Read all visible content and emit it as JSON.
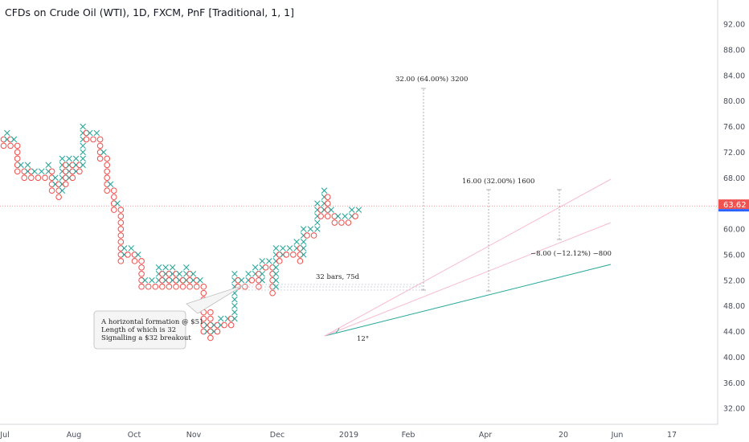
{
  "title": "CFDs on Crude Oil (WTI), 1D, FXCM, PnF [Traditional, 1, 1]",
  "current_price": "63.62",
  "colors": {
    "x_mark": "#26a69a",
    "o_mark": "#ef5350",
    "price_tag": "#ef5350",
    "price_tag_stripe": "#2962ff",
    "trend_green": "#26a69a",
    "trend_pink": "#f48fb1",
    "axis_text": "#4a4f5c"
  },
  "chart_data": {
    "type": "pnf",
    "box_size": 1,
    "reversal": 1,
    "x_axis": {
      "tick_labels": [
        "Jul",
        "Aug",
        "Oct",
        "Nov",
        "Dec",
        "2019",
        "Feb",
        "Apr",
        "20",
        "Jun",
        "17"
      ]
    },
    "y_axis": {
      "range": [
        29,
        95
      ],
      "tick_values": [
        32,
        36,
        40,
        44,
        48,
        52,
        56,
        60,
        64,
        68,
        72,
        76,
        80,
        84,
        88,
        92
      ],
      "tick_labels": [
        "32.00",
        "36.00",
        "40.00",
        "44.00",
        "48.00",
        "52.00",
        "56.00",
        "60.00",
        "64.00",
        "68.00",
        "72.00",
        "76.00",
        "80.00",
        "84.00",
        "88.00",
        "92.00"
      ]
    },
    "columns": [
      {
        "type": "O",
        "from": 74,
        "to": 73
      },
      {
        "type": "X",
        "from": 74,
        "to": 75
      },
      {
        "type": "O",
        "from": 74,
        "to": 73
      },
      {
        "type": "X",
        "from": 74,
        "to": 74
      },
      {
        "type": "O",
        "from": 73,
        "to": 69
      },
      {
        "type": "X",
        "from": 70,
        "to": 70
      },
      {
        "type": "O",
        "from": 69,
        "to": 68
      },
      {
        "type": "X",
        "from": 69,
        "to": 70
      },
      {
        "type": "O",
        "from": 69,
        "to": 68
      },
      {
        "type": "X",
        "from": 69,
        "to": 69
      },
      {
        "type": "O",
        "from": 68,
        "to": 68
      },
      {
        "type": "X",
        "from": 69,
        "to": 69
      },
      {
        "type": "O",
        "from": 68,
        "to": 68
      },
      {
        "type": "X",
        "from": 69,
        "to": 70
      },
      {
        "type": "O",
        "from": 69,
        "to": 66
      },
      {
        "type": "X",
        "from": 67,
        "to": 68
      },
      {
        "type": "O",
        "from": 67,
        "to": 65
      },
      {
        "type": "X",
        "from": 66,
        "to": 71
      },
      {
        "type": "O",
        "from": 70,
        "to": 67
      },
      {
        "type": "X",
        "from": 68,
        "to": 71
      },
      {
        "type": "O",
        "from": 70,
        "to": 68
      },
      {
        "type": "X",
        "from": 69,
        "to": 71
      },
      {
        "type": "O",
        "from": 70,
        "to": 69
      },
      {
        "type": "X",
        "from": 70,
        "to": 76
      },
      {
        "type": "O",
        "from": 75,
        "to": 74
      },
      {
        "type": "X",
        "from": 75,
        "to": 75
      },
      {
        "type": "O",
        "from": 74,
        "to": 74
      },
      {
        "type": "X",
        "from": 75,
        "to": 75
      },
      {
        "type": "O",
        "from": 74,
        "to": 71
      },
      {
        "type": "X",
        "from": 72,
        "to": 72
      },
      {
        "type": "O",
        "from": 71,
        "to": 66
      },
      {
        "type": "X",
        "from": 67,
        "to": 67
      },
      {
        "type": "O",
        "from": 66,
        "to": 63
      },
      {
        "type": "X",
        "from": 64,
        "to": 64
      },
      {
        "type": "O",
        "from": 63,
        "to": 55
      },
      {
        "type": "X",
        "from": 56,
        "to": 57
      },
      {
        "type": "O",
        "from": 56,
        "to": 56
      },
      {
        "type": "X",
        "from": 57,
        "to": 57
      },
      {
        "type": "O",
        "from": 56,
        "to": 55
      },
      {
        "type": "X",
        "from": 56,
        "to": 56
      },
      {
        "type": "O",
        "from": 55,
        "to": 51
      },
      {
        "type": "X",
        "from": 52,
        "to": 52
      },
      {
        "type": "O",
        "from": 51,
        "to": 51
      },
      {
        "type": "X",
        "from": 52,
        "to": 52
      },
      {
        "type": "O",
        "from": 51,
        "to": 51
      },
      {
        "type": "X",
        "from": 52,
        "to": 54
      },
      {
        "type": "O",
        "from": 53,
        "to": 51
      },
      {
        "type": "X",
        "from": 52,
        "to": 54
      },
      {
        "type": "O",
        "from": 53,
        "to": 51
      },
      {
        "type": "X",
        "from": 52,
        "to": 54
      },
      {
        "type": "O",
        "from": 53,
        "to": 51
      },
      {
        "type": "X",
        "from": 52,
        "to": 53
      },
      {
        "type": "O",
        "from": 52,
        "to": 51
      },
      {
        "type": "X",
        "from": 52,
        "to": 54
      },
      {
        "type": "O",
        "from": 53,
        "to": 51
      },
      {
        "type": "X",
        "from": 52,
        "to": 53
      },
      {
        "type": "O",
        "from": 52,
        "to": 51
      },
      {
        "type": "X",
        "from": 52,
        "to": 52
      },
      {
        "type": "O",
        "from": 51,
        "to": 44
      },
      {
        "type": "X",
        "from": 44,
        "to": 45
      },
      {
        "type": "O",
        "from": 47,
        "to": 43
      },
      {
        "type": "X",
        "from": 44,
        "to": 45
      },
      {
        "type": "O",
        "from": 45,
        "to": 44
      },
      {
        "type": "X",
        "from": 45,
        "to": 46
      },
      {
        "type": "O",
        "from": 45,
        "to": 45
      },
      {
        "type": "X",
        "from": 46,
        "to": 46
      },
      {
        "type": "O",
        "from": 46,
        "to": 45
      },
      {
        "type": "X",
        "from": 46,
        "to": 53
      },
      {
        "type": "O",
        "from": 52,
        "to": 51
      },
      {
        "type": "X",
        "from": 52,
        "to": 52
      },
      {
        "type": "O",
        "from": 51,
        "to": 51
      },
      {
        "type": "X",
        "from": 52,
        "to": 53
      },
      {
        "type": "O",
        "from": 52,
        "to": 52
      },
      {
        "type": "X",
        "from": 53,
        "to": 54
      },
      {
        "type": "O",
        "from": 53,
        "to": 51
      },
      {
        "type": "X",
        "from": 52,
        "to": 55
      },
      {
        "type": "O",
        "from": 54,
        "to": 54
      },
      {
        "type": "X",
        "from": 55,
        "to": 55
      },
      {
        "type": "O",
        "from": 54,
        "to": 50
      },
      {
        "type": "X",
        "from": 51,
        "to": 57
      },
      {
        "type": "O",
        "from": 56,
        "to": 55
      },
      {
        "type": "X",
        "from": 56,
        "to": 57
      },
      {
        "type": "O",
        "from": 56,
        "to": 56
      },
      {
        "type": "X",
        "from": 57,
        "to": 57
      },
      {
        "type": "O",
        "from": 56,
        "to": 56
      },
      {
        "type": "X",
        "from": 57,
        "to": 58
      },
      {
        "type": "O",
        "from": 57,
        "to": 55
      },
      {
        "type": "X",
        "from": 56,
        "to": 60
      },
      {
        "type": "O",
        "from": 59,
        "to": 59
      },
      {
        "type": "X",
        "from": 60,
        "to": 60
      },
      {
        "type": "O",
        "from": 59,
        "to": 59
      },
      {
        "type": "X",
        "from": 60,
        "to": 64
      },
      {
        "type": "O",
        "from": 63,
        "to": 62
      },
      {
        "type": "X",
        "from": 63,
        "to": 66
      },
      {
        "type": "O",
        "from": 65,
        "to": 62
      },
      {
        "type": "X",
        "from": 63,
        "to": 63
      },
      {
        "type": "O",
        "from": 62,
        "to": 61
      },
      {
        "type": "X",
        "from": 62,
        "to": 62
      },
      {
        "type": "O",
        "from": 61,
        "to": 61
      },
      {
        "type": "X",
        "from": 62,
        "to": 62
      },
      {
        "type": "O",
        "from": 61,
        "to": 61
      },
      {
        "type": "X",
        "from": 62,
        "to": 63
      },
      {
        "type": "O",
        "from": 62,
        "to": 62
      },
      {
        "type": "X",
        "from": 63,
        "to": 63
      }
    ],
    "annotations": {
      "horizontal_count": "32 bars, 75d",
      "target_main": "32.00 (64.00%) 3200",
      "target_mid": "16.00 (32.00%) 1600",
      "target_neg": "−8.00 (−12.12%) −800",
      "angle": "12°",
      "callout_lines": [
        "A horizontal formation @ $51",
        "Length of which is 32",
        "Signalling a $32 breakout"
      ]
    }
  }
}
